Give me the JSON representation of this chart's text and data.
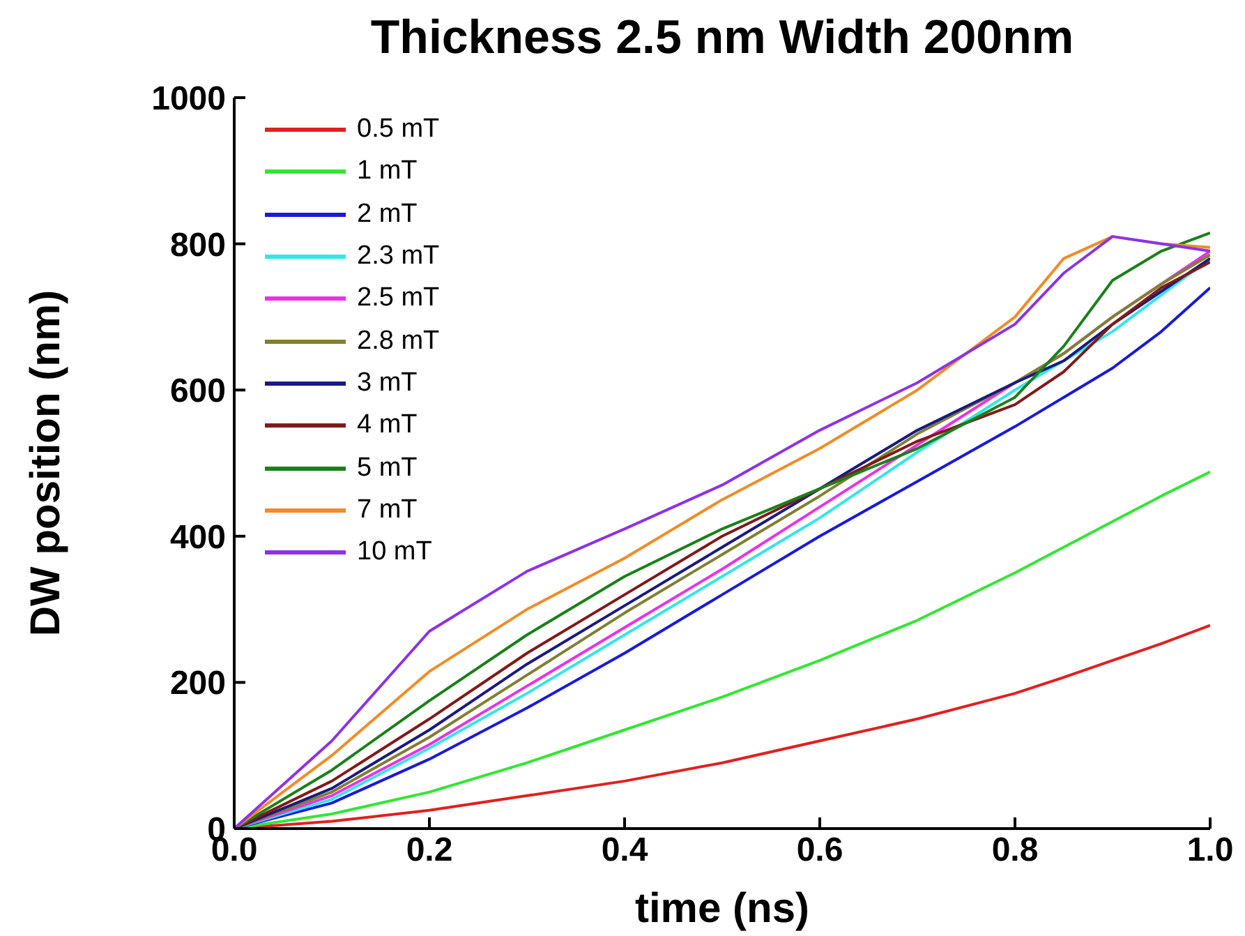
{
  "chart_data": {
    "type": "line",
    "title": "Thickness 2.5 nm Width 200nm",
    "xlabel": "time (ns)",
    "ylabel": "DW position (nm)",
    "x": [
      0,
      0.1,
      0.2,
      0.3,
      0.4,
      0.5,
      0.6,
      0.7,
      0.8,
      0.85,
      0.9,
      0.95,
      1.0
    ],
    "series": [
      {
        "name": "0.5 mT",
        "color": "#e02020",
        "values": [
          0,
          10,
          25,
          45,
          65,
          90,
          120,
          150,
          185,
          207,
          230,
          253,
          278
        ]
      },
      {
        "name": "1 mT",
        "color": "#33e633",
        "values": [
          0,
          20,
          50,
          90,
          135,
          180,
          230,
          285,
          350,
          385,
          420,
          455,
          488
        ]
      },
      {
        "name": "2 mT",
        "color": "#1a1ad9",
        "values": [
          0,
          35,
          95,
          165,
          240,
          320,
          400,
          475,
          550,
          590,
          630,
          680,
          740
        ]
      },
      {
        "name": "2.3 mT",
        "color": "#33e6e6",
        "values": [
          0,
          40,
          110,
          185,
          265,
          345,
          425,
          515,
          600,
          640,
          680,
          730,
          780
        ]
      },
      {
        "name": "2.5 mT",
        "color": "#e633e6",
        "values": [
          0,
          45,
          115,
          195,
          275,
          355,
          440,
          525,
          610,
          650,
          700,
          745,
          790
        ]
      },
      {
        "name": "2.8 mT",
        "color": "#808033",
        "values": [
          0,
          50,
          125,
          210,
          295,
          375,
          455,
          540,
          610,
          650,
          700,
          745,
          785
        ]
      },
      {
        "name": "3 mT",
        "color": "#1a1a80",
        "values": [
          0,
          55,
          135,
          225,
          305,
          385,
          465,
          545,
          610,
          640,
          690,
          735,
          780
        ]
      },
      {
        "name": "4 mT",
        "color": "#801a1a",
        "values": [
          0,
          65,
          150,
          240,
          320,
          400,
          465,
          530,
          580,
          625,
          690,
          740,
          775
        ]
      },
      {
        "name": "5 mT",
        "color": "#1a801a",
        "values": [
          0,
          80,
          175,
          265,
          345,
          410,
          465,
          520,
          590,
          660,
          750,
          790,
          815
        ]
      },
      {
        "name": "7 mT",
        "color": "#f08c26",
        "values": [
          0,
          100,
          215,
          300,
          370,
          450,
          520,
          600,
          700,
          780,
          810,
          800,
          795
        ]
      },
      {
        "name": "10 mT",
        "color": "#8c33e6",
        "values": [
          0,
          120,
          270,
          352,
          410,
          470,
          545,
          610,
          690,
          760,
          810,
          800,
          790
        ]
      }
    ],
    "xlim": [
      0,
      1
    ],
    "xticks": [
      {
        "value": 0,
        "label": "0.0"
      },
      {
        "value": 0.2,
        "label": "0.2"
      },
      {
        "value": 0.4,
        "label": "0.4"
      },
      {
        "value": 0.6,
        "label": "0.6"
      },
      {
        "value": 0.8,
        "label": "0.8"
      },
      {
        "value": 1,
        "label": "1.0"
      }
    ],
    "ylim": [
      0,
      1000
    ],
    "yticks": [
      0,
      200,
      400,
      600,
      800,
      1000
    ],
    "legend": "top left",
    "marker": "none",
    "line_style": "solid",
    "grid": false
  }
}
